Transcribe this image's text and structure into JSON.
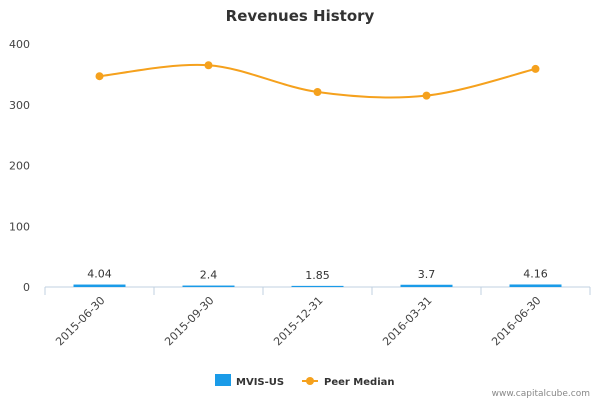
{
  "chart_data": {
    "type": "bar+line",
    "title": "Revenues History",
    "categories": [
      "2015-06-30",
      "2015-09-30",
      "2015-12-31",
      "2016-03-31",
      "2016-06-30"
    ],
    "series": [
      {
        "name": "MVIS-US",
        "kind": "bar",
        "color": "#1a9be8",
        "values": [
          4.04,
          2.4,
          1.85,
          3.7,
          4.16
        ],
        "data_labels": [
          "4.04",
          "2.4",
          "1.85",
          "3.7",
          "4.16"
        ]
      },
      {
        "name": "Peer Median",
        "kind": "line",
        "color": "#f5a11d",
        "values": [
          347,
          365,
          321,
          315,
          359
        ]
      }
    ],
    "ylim": [
      0,
      400
    ],
    "yticks": [
      0,
      100,
      200,
      300,
      400
    ],
    "xlabel": "",
    "ylabel": "",
    "grid": false,
    "legend_position": "bottom-center"
  },
  "credit": "www.capitalcube.com"
}
